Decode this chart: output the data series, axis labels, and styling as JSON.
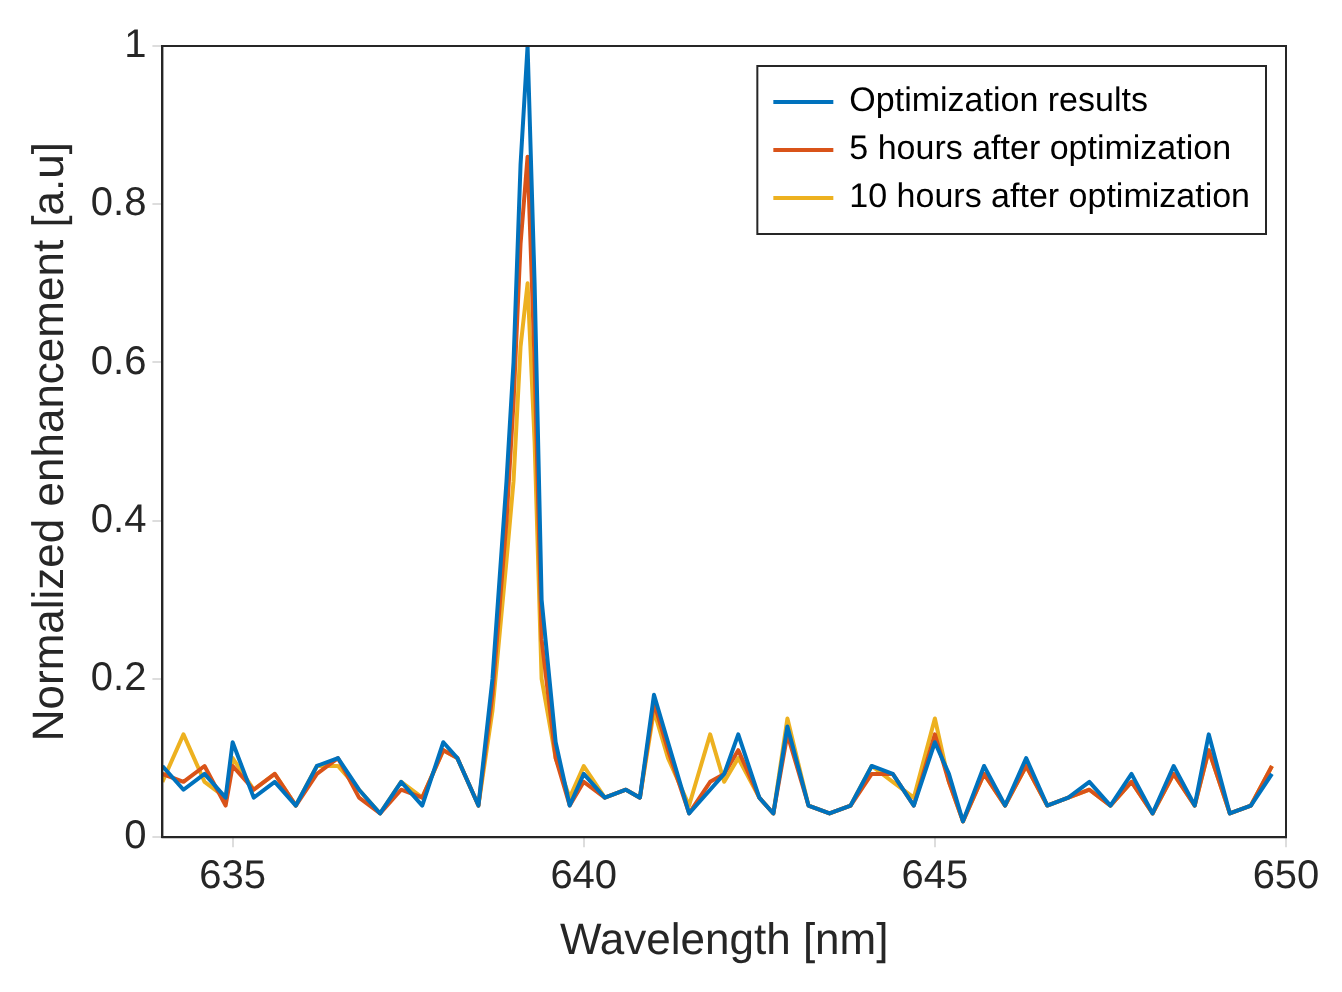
{
  "chart_data": {
    "type": "line",
    "xlabel": "Wavelength [nm]",
    "ylabel": "Normalized enhancement [a.u]",
    "legend": "top right",
    "marker": "none",
    "line_style": "solid",
    "x": [
      634.0,
      634.3,
      634.6,
      634.9,
      635.0,
      635.3,
      635.6,
      635.9,
      636.2,
      636.5,
      636.8,
      637.1,
      637.4,
      637.7,
      638.0,
      638.2,
      638.5,
      638.7,
      638.9,
      639.0,
      639.1,
      639.2,
      639.3,
      639.4,
      639.6,
      639.8,
      640.0,
      640.3,
      640.6,
      640.8,
      641.0,
      641.2,
      641.5,
      641.8,
      642.0,
      642.2,
      642.5,
      642.7,
      642.9,
      643.2,
      643.5,
      643.8,
      644.1,
      644.4,
      644.7,
      645.0,
      645.2,
      645.4,
      645.7,
      646.0,
      646.3,
      646.6,
      646.9,
      647.2,
      647.5,
      647.8,
      648.1,
      648.4,
      648.7,
      648.9,
      649.2,
      649.5,
      649.8
    ],
    "series": [
      {
        "name": "Optimization results",
        "color": "#0072bd",
        "values": [
          0.09,
          0.06,
          0.08,
          0.05,
          0.12,
          0.05,
          0.07,
          0.04,
          0.09,
          0.1,
          0.06,
          0.03,
          0.07,
          0.04,
          0.12,
          0.1,
          0.04,
          0.2,
          0.45,
          0.6,
          0.85,
          1.0,
          0.7,
          0.3,
          0.12,
          0.04,
          0.08,
          0.05,
          0.06,
          0.05,
          0.18,
          0.12,
          0.03,
          0.06,
          0.08,
          0.13,
          0.05,
          0.03,
          0.14,
          0.04,
          0.03,
          0.04,
          0.09,
          0.08,
          0.04,
          0.12,
          0.08,
          0.02,
          0.09,
          0.04,
          0.1,
          0.04,
          0.05,
          0.07,
          0.04,
          0.08,
          0.03,
          0.09,
          0.04,
          0.13,
          0.03,
          0.04,
          0.08
        ]
      },
      {
        "name": "5 hours after optimization",
        "color": "#d95319",
        "values": [
          0.08,
          0.07,
          0.09,
          0.04,
          0.09,
          0.06,
          0.08,
          0.04,
          0.08,
          0.1,
          0.05,
          0.03,
          0.06,
          0.05,
          0.11,
          0.1,
          0.04,
          0.18,
          0.4,
          0.55,
          0.75,
          0.86,
          0.6,
          0.25,
          0.1,
          0.04,
          0.07,
          0.05,
          0.06,
          0.05,
          0.17,
          0.11,
          0.03,
          0.07,
          0.08,
          0.11,
          0.05,
          0.03,
          0.13,
          0.04,
          0.03,
          0.04,
          0.08,
          0.08,
          0.04,
          0.13,
          0.07,
          0.02,
          0.08,
          0.04,
          0.09,
          0.04,
          0.05,
          0.06,
          0.04,
          0.07,
          0.03,
          0.08,
          0.04,
          0.11,
          0.03,
          0.04,
          0.09
        ]
      },
      {
        "name": "10 hours after optimization",
        "color": "#edb120",
        "values": [
          0.07,
          0.13,
          0.07,
          0.05,
          0.1,
          0.06,
          0.08,
          0.04,
          0.09,
          0.09,
          0.06,
          0.03,
          0.07,
          0.05,
          0.11,
          0.1,
          0.04,
          0.16,
          0.35,
          0.45,
          0.62,
          0.7,
          0.5,
          0.2,
          0.1,
          0.05,
          0.09,
          0.05,
          0.06,
          0.05,
          0.16,
          0.1,
          0.04,
          0.13,
          0.07,
          0.1,
          0.05,
          0.03,
          0.15,
          0.04,
          0.03,
          0.04,
          0.09,
          0.07,
          0.05,
          0.15,
          0.07,
          0.02,
          0.08,
          0.04,
          0.09,
          0.04,
          0.05,
          0.06,
          0.04,
          0.07,
          0.03,
          0.08,
          0.04,
          0.11,
          0.03,
          0.04,
          0.09
        ]
      }
    ],
    "xlim": [
      634,
      650
    ],
    "xticks": [
      635,
      640,
      645,
      650
    ],
    "ylim": [
      0,
      1
    ],
    "yticks": [
      0,
      0.2,
      0.4,
      0.6,
      0.8,
      1
    ]
  }
}
